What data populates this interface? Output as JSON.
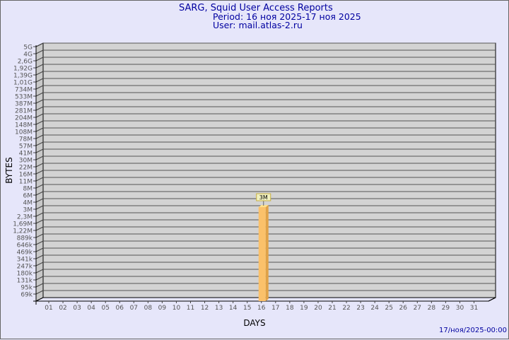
{
  "header": {
    "title": "SARG, Squid User Access Reports",
    "period": "Period: 16 ноя 2025-17 ноя 2025",
    "user": "User: mail.atlas-2.ru"
  },
  "footer_timestamp": "17/ноя/2025-00:00",
  "colors": {
    "background": "#e6e6fa",
    "title": "#0000a0",
    "plot_wall": "#d3d3d3",
    "bar": "#fbc16a",
    "bar_side": "#e0a248",
    "label_box": "#f0f0c0"
  },
  "chart_data": {
    "type": "bar",
    "title": "SARG, Squid User Access Reports",
    "xlabel": "DAYS",
    "ylabel": "BYTES",
    "y_scale": "log",
    "grid": true,
    "y_tick_labels": [
      "5G",
      "4G",
      "2,6G",
      "1,92G",
      "1,39G",
      "1,01G",
      "734M",
      "533M",
      "387M",
      "281M",
      "204M",
      "148M",
      "108M",
      "78M",
      "57M",
      "41M",
      "30M",
      "22M",
      "16M",
      "11M",
      "8M",
      "6M",
      "4M",
      "3M",
      "2,3M",
      "1,69M",
      "1,22M",
      "889k",
      "646k",
      "469k",
      "341k",
      "247k",
      "180k",
      "131k",
      "95k",
      "69k"
    ],
    "categories": [
      "01",
      "02",
      "03",
      "04",
      "05",
      "06",
      "07",
      "08",
      "09",
      "10",
      "11",
      "12",
      "13",
      "14",
      "15",
      "16",
      "17",
      "18",
      "19",
      "20",
      "21",
      "22",
      "23",
      "24",
      "25",
      "26",
      "27",
      "28",
      "29",
      "30",
      "31"
    ],
    "bars": [
      {
        "day": "16",
        "value": "3M",
        "label": "3M"
      }
    ]
  }
}
